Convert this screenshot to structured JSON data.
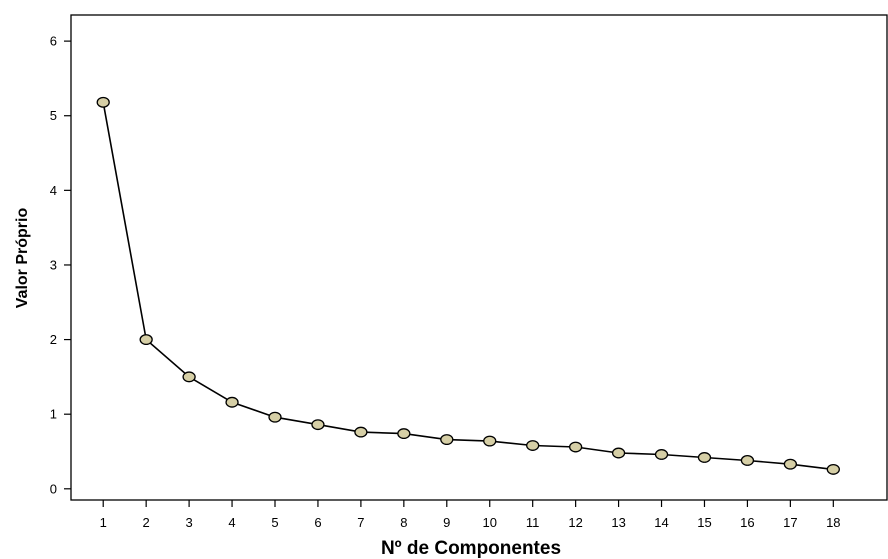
{
  "chart_data": {
    "type": "line",
    "title": "",
    "xlabel": "Nº de Componentes",
    "ylabel": "Valor Próprio",
    "x": [
      1,
      2,
      3,
      4,
      5,
      6,
      7,
      8,
      9,
      10,
      11,
      12,
      13,
      14,
      15,
      16,
      17,
      18
    ],
    "series": [
      {
        "values": [
          5.18,
          2.0,
          1.5,
          1.16,
          0.96,
          0.86,
          0.76,
          0.74,
          0.66,
          0.64,
          0.58,
          0.56,
          0.48,
          0.46,
          0.42,
          0.38,
          0.33,
          0.26
        ]
      }
    ],
    "xlim": [
      0.25,
      19.25
    ],
    "ylim": [
      -0.15,
      6.35
    ],
    "yticks": [
      0,
      1,
      2,
      3,
      4,
      5,
      6
    ],
    "xticks": [
      "1",
      "2",
      "3",
      "4",
      "5",
      "6",
      "7",
      "8",
      "9",
      "10",
      "11",
      "12",
      "13",
      "14",
      "15",
      "16",
      "17",
      "18"
    ],
    "yticks_labels": [
      "0",
      "1",
      "2",
      "3",
      "4",
      "5",
      "6"
    ],
    "grid": false,
    "legend": "none",
    "colors": {
      "line": "#000000",
      "marker_fill": "#d6cfa6",
      "marker_stroke": "#000000"
    }
  }
}
